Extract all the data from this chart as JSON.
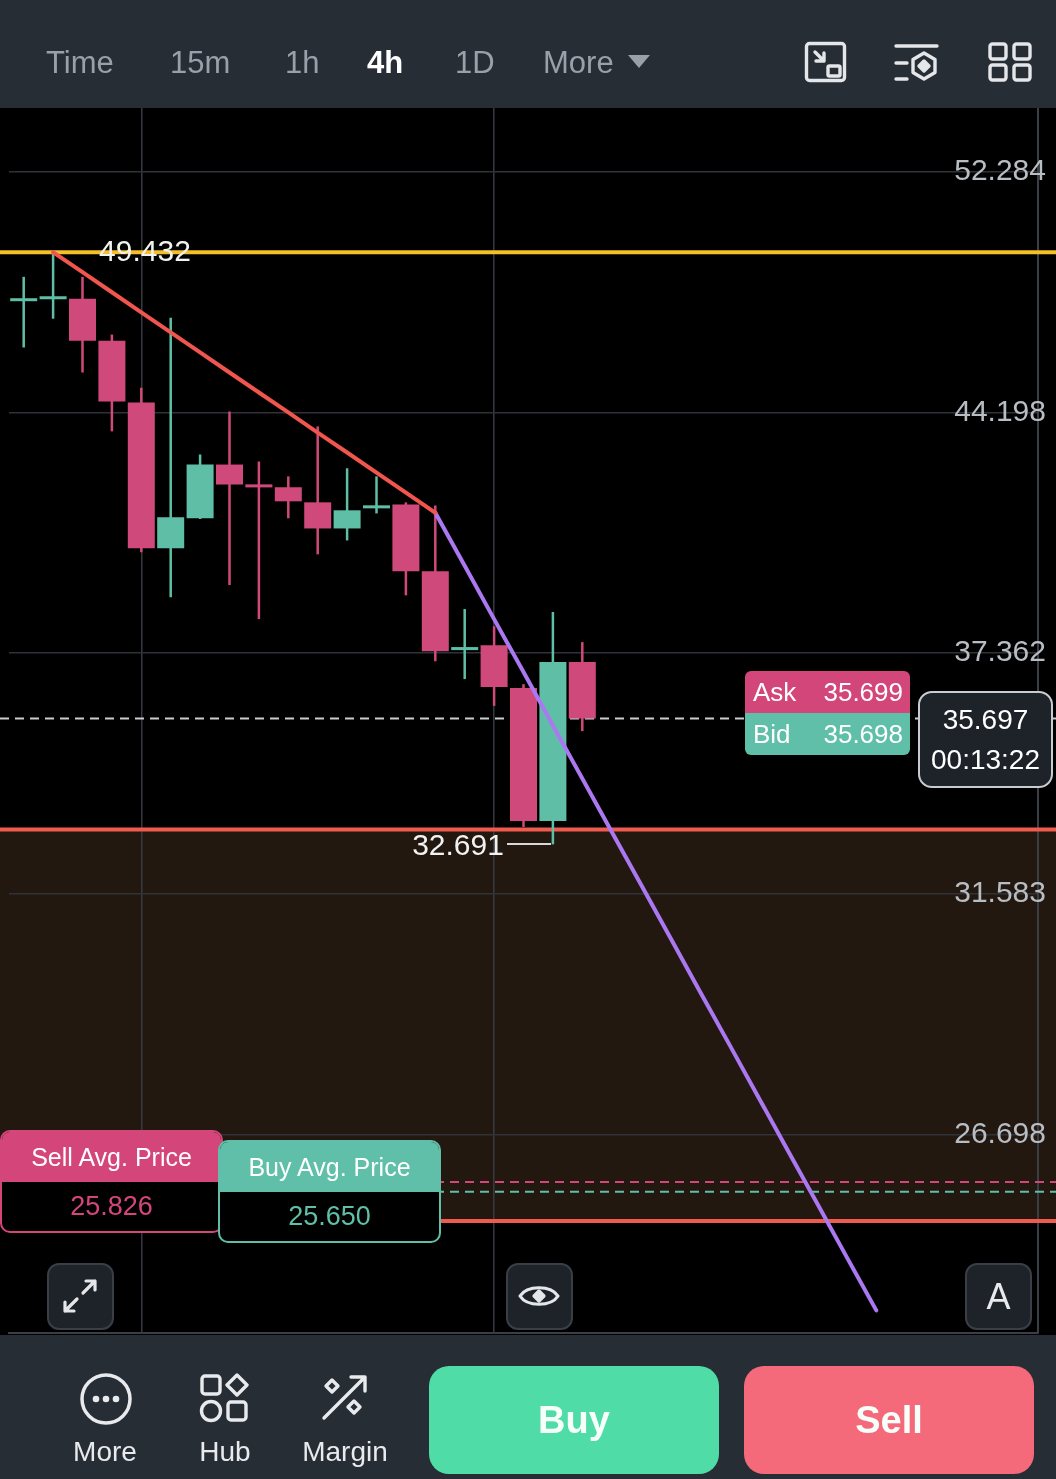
{
  "chart_data": {
    "type": "candlestick",
    "categories": [
      null,
      null,
      null,
      null,
      null,
      null,
      null,
      null,
      null,
      null,
      null,
      null,
      null,
      null,
      null,
      null,
      null,
      null,
      null,
      null,
      null,
      null,
      null,
      null,
      null,
      null,
      null,
      null,
      null,
      null,
      null,
      null,
      null,
      null,
      null
    ],
    "ohlc": [
      [
        47.8,
        48.59,
        46.25,
        47.84
      ],
      [
        47.87,
        49.432,
        47.19,
        47.9
      ],
      [
        47.85,
        48.59,
        45.45,
        46.47
      ],
      [
        46.47,
        46.67,
        43.62,
        44.54
      ],
      [
        44.51,
        44.97,
        40.09,
        40.2
      ],
      [
        40.2,
        47.22,
        38.85,
        41.08
      ],
      [
        41.05,
        42.92,
        41.03,
        42.62
      ],
      [
        42.62,
        44.23,
        39.18,
        42.03
      ],
      [
        42.03,
        42.71,
        38.26,
        41.95
      ],
      [
        41.95,
        42.27,
        41.05,
        41.54
      ],
      [
        41.51,
        43.77,
        40.03,
        40.76
      ],
      [
        40.76,
        42.51,
        40.42,
        41.28
      ],
      [
        41.34,
        42.27,
        41.19,
        41.42
      ],
      [
        41.45,
        41.51,
        38.9,
        39.56
      ],
      [
        39.56,
        41.42,
        37.15,
        37.41
      ],
      [
        37.44,
        38.53,
        36.69,
        37.52
      ],
      [
        37.57,
        38.07,
        36.01,
        36.49
      ],
      [
        36.46,
        36.56,
        33.09,
        33.23
      ],
      [
        33.23,
        38.45,
        32.691,
        37.13
      ],
      [
        37.13,
        37.65,
        35.38,
        35.697
      ],
      null,
      null,
      null,
      null,
      null,
      null,
      null,
      null,
      null,
      null,
      null,
      null,
      null,
      null,
      null
    ],
    "colors": [
      "#5fbfa6",
      "#5fbfa6",
      "#cf4a7a",
      "#cf4a7a",
      "#cf4a7a",
      "#5fbfa6",
      "#5fbfa6",
      "#cf4a7a",
      "#cf4a7a",
      "#cf4a7a",
      "#cf4a7a",
      "#5fbfa6",
      "#5fbfa6",
      "#cf4a7a",
      "#cf4a7a",
      "#5fbfa6",
      "#cf4a7a",
      "#cf4a7a",
      "#5fbfa6",
      "#cf4a7a",
      null,
      null,
      null,
      null,
      null,
      null,
      null,
      null,
      null,
      null,
      null,
      null,
      null,
      null,
      null
    ],
    "series": [
      {
        "type": "line",
        "color": "#f0564e",
        "values": [
          null,
          49.432,
          48.75,
          48.07,
          47.4,
          46.74,
          46.09,
          45.45,
          44.82,
          44.2,
          43.58,
          42.98,
          42.38,
          41.79,
          41.21,
          null,
          null,
          null,
          null,
          null,
          null,
          null,
          null,
          null,
          null,
          null,
          null,
          null,
          null,
          null,
          null,
          null,
          null,
          null,
          null
        ]
      },
      {
        "type": "line",
        "color": "#ab78f2",
        "values": [
          null,
          null,
          null,
          null,
          null,
          null,
          null,
          null,
          null,
          null,
          null,
          null,
          null,
          null,
          41.21,
          39.71,
          38.26,
          36.87,
          35.52,
          34.23,
          32.98,
          31.78,
          30.62,
          29.5,
          28.43,
          27.39,
          26.39,
          25.43,
          24.5,
          23.61,
          null,
          null,
          null,
          null,
          null
        ]
      }
    ],
    "ylim": [
      23.24,
      54.67
    ],
    "yticks": [
      26.698,
      31.583,
      37.362,
      44.198,
      52.284
    ],
    "log": true,
    "grid": true,
    "tick_labels": "y",
    "marker": "none",
    "ref_lines": [
      {
        "axis": "y",
        "value": 49.432,
        "color": "#f5bf2a"
      },
      {
        "axis": "y",
        "value": 35.697,
        "color": "#c9cdd2",
        "line_style": "dashed"
      },
      {
        "axis": "y",
        "value": 33.03,
        "color": "#f05a4f"
      },
      {
        "axis": "y",
        "value": 25.13,
        "color": "#f05a4f"
      },
      {
        "axis": "y",
        "value": 25.826,
        "label": "Sell Avg. Price",
        "color": "#d4457a",
        "line_style": "dashed"
      },
      {
        "axis": "y",
        "value": 25.65,
        "label": "Buy Avg. Price",
        "color": "#5fbfa8",
        "line_style": "dashed"
      }
    ],
    "bands": [
      {
        "axis": "y",
        "from": 25.13,
        "to": 33.03,
        "color": "#221810"
      }
    ],
    "annotations": [
      "Time",
      "15m",
      "1h",
      "4h",
      "1D",
      "More",
      {
        "text": "49.432",
        "y": 49.432
      },
      "32.691",
      "Ask",
      {
        "text": "35.699",
        "y": 35.699
      },
      "Bid",
      {
        "text": "35.698",
        "y": 35.698
      },
      {
        "text": "35.697",
        "y": 35.697
      },
      "00:13:22",
      {
        "text": "25.826",
        "y": 25.826
      },
      {
        "text": "25.650",
        "y": 25.65
      },
      "A",
      "More",
      "Hub",
      "Margin",
      "Buy",
      "Sell"
    ]
  }
}
